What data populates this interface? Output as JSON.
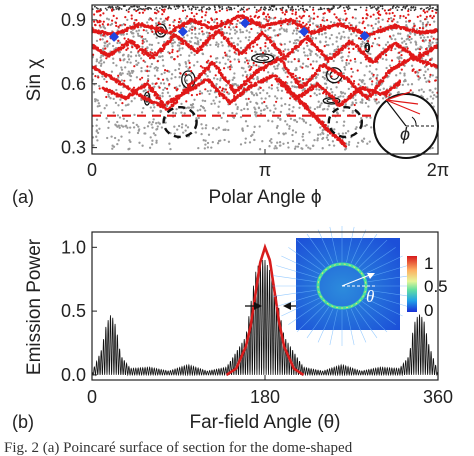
{
  "figure": {
    "panel_a_tag": "(a)",
    "panel_b_tag": "(b)",
    "caption_fragment": "Fig. 2   (a) Poincaré surface of section for the dome-shaped"
  },
  "chart_data": [
    {
      "type": "scatter",
      "panel": "(a)",
      "xlabel": "Polar Angle ϕ",
      "ylabel": "Sin χ",
      "xlim": [
        0,
        6.2832
      ],
      "ylim": [
        0.27,
        0.97
      ],
      "x_ticks": [
        "0",
        "π",
        "2π"
      ],
      "x_tick_values": [
        0,
        3.1416,
        6.2832
      ],
      "y_ticks": [
        "0.3",
        "0.6",
        "0.9"
      ],
      "y_tick_values": [
        0.3,
        0.6,
        0.9
      ],
      "critical_line": 0.45,
      "colors": {
        "chaotic": "#9a9a9a",
        "manifold": "#e01818",
        "islands": "#111111",
        "markers": "#2046e0",
        "critical": "#e01818"
      },
      "blue_markers": {
        "x": [
          0.4,
          1.65,
          2.78,
          3.85,
          4.95
        ],
        "y": [
          0.82,
          0.845,
          0.885,
          0.845,
          0.825
        ]
      },
      "red_curves": [
        {
          "x": [
            0.0,
            0.4,
            0.9,
            1.4,
            1.8,
            2.2,
            2.7,
            3.1,
            3.6,
            4.0,
            4.5,
            5.0,
            5.5,
            6.0,
            6.28
          ],
          "y": [
            0.85,
            0.83,
            0.88,
            0.84,
            0.9,
            0.86,
            0.92,
            0.87,
            0.9,
            0.84,
            0.88,
            0.83,
            0.87,
            0.84,
            0.85
          ]
        },
        {
          "x": [
            0.0,
            0.3,
            0.7,
            1.1,
            1.5,
            1.9,
            2.3,
            2.7,
            3.1,
            3.5,
            3.9,
            4.3,
            4.7,
            5.1,
            5.5,
            5.9,
            6.28
          ],
          "y": [
            0.78,
            0.73,
            0.8,
            0.72,
            0.83,
            0.75,
            0.85,
            0.74,
            0.84,
            0.72,
            0.82,
            0.71,
            0.8,
            0.7,
            0.79,
            0.72,
            0.78
          ]
        },
        {
          "x": [
            0.0,
            0.4,
            0.9,
            1.4,
            1.8,
            2.2,
            2.6,
            3.0,
            3.4,
            3.8,
            4.2,
            4.6,
            5.0,
            5.4,
            5.8,
            6.28
          ],
          "y": [
            0.68,
            0.62,
            0.54,
            0.48,
            0.6,
            0.7,
            0.56,
            0.66,
            0.72,
            0.58,
            0.69,
            0.63,
            0.53,
            0.66,
            0.72,
            0.68
          ]
        },
        {
          "x": [
            0.2,
            0.6,
            1.0,
            1.3,
            1.7,
            2.1,
            2.5,
            2.9,
            3.3,
            3.7,
            4.1,
            4.5,
            4.9,
            5.3,
            5.6
          ],
          "y": [
            0.58,
            0.53,
            0.6,
            0.5,
            0.56,
            0.62,
            0.51,
            0.59,
            0.64,
            0.53,
            0.6,
            0.5,
            0.58,
            0.55,
            0.61
          ]
        },
        {
          "x": [
            3.4,
            3.7,
            4.0,
            4.3,
            4.6
          ],
          "y": [
            0.62,
            0.54,
            0.46,
            0.38,
            0.31
          ]
        }
      ],
      "red_regions": [
        {
          "x": [
            0.0,
            6.28
          ],
          "y": [
            0.86,
            0.95
          ]
        },
        {
          "x": [
            0.0,
            6.28
          ],
          "y": [
            0.5,
            0.86
          ]
        }
      ],
      "black_islands": [
        {
          "cx": 1.75,
          "cy": 0.62,
          "rx": 0.12,
          "ry": 0.04
        },
        {
          "cx": 1.25,
          "cy": 0.85,
          "rx": 0.1,
          "ry": 0.03
        },
        {
          "cx": 3.1,
          "cy": 0.72,
          "rx": 0.2,
          "ry": 0.02
        },
        {
          "cx": 4.4,
          "cy": 0.64,
          "rx": 0.14,
          "ry": 0.035
        },
        {
          "cx": 1.0,
          "cy": 0.53,
          "rx": 0.05,
          "ry": 0.03
        },
        {
          "cx": 4.35,
          "cy": 0.52,
          "rx": 0.15,
          "ry": 0.015
        },
        {
          "cx": 5.0,
          "cy": 0.77,
          "rx": 0.04,
          "ry": 0.02
        }
      ],
      "dashed_circles": [
        {
          "cx": 1.6,
          "cy": 0.42,
          "rx": 0.3,
          "ry": 0.07
        },
        {
          "cx": 4.6,
          "cy": 0.42,
          "rx": 0.3,
          "ry": 0.07
        }
      ],
      "inset_geometry": {
        "label": "ϕ"
      }
    },
    {
      "type": "line",
      "panel": "(b)",
      "xlabel": "Far-field Angle (θ)",
      "ylabel": "Emission Power",
      "xlim": [
        0,
        360
      ],
      "ylim": [
        -0.04,
        1.12
      ],
      "x_ticks": [
        "0",
        "180",
        "360"
      ],
      "x_tick_values": [
        0,
        180,
        360
      ],
      "y_ticks": [
        "0.0",
        "0.5",
        "1.0"
      ],
      "y_tick_values": [
        0,
        0.5,
        1.0
      ],
      "series": [
        {
          "color": "#d81c1c",
          "x": [
            140,
            150,
            160,
            165,
            170,
            175,
            180,
            185,
            190,
            195,
            200,
            210,
            220
          ],
          "y": [
            0.0,
            0.05,
            0.22,
            0.38,
            0.63,
            0.88,
            1.0,
            0.9,
            0.65,
            0.4,
            0.22,
            0.05,
            0.0
          ]
        },
        {
          "color": "#111111",
          "envelope": {
            "x": [
              0,
              10,
              15,
              20,
              25,
              30,
              40,
              60,
              80,
              100,
              120,
              140,
              160,
              170,
              175,
              180,
              185,
              190,
              200,
              220,
              240,
              260,
              280,
              300,
              320,
              330,
              335,
              340,
              345,
              350,
              360
            ],
            "y": [
              0.02,
              0.2,
              0.4,
              0.48,
              0.38,
              0.15,
              0.05,
              0.06,
              0.03,
              0.08,
              0.03,
              0.06,
              0.3,
              0.8,
              0.9,
              0.9,
              0.82,
              0.7,
              0.3,
              0.06,
              0.03,
              0.08,
              0.03,
              0.06,
              0.05,
              0.15,
              0.4,
              0.48,
              0.44,
              0.25,
              0.02
            ]
          }
        }
      ],
      "colorbar": {
        "ticks": [
          "1",
          "0.5",
          "0"
        ],
        "tick_values": [
          1,
          0.5,
          0
        ]
      },
      "inset_label": "θ"
    }
  ]
}
